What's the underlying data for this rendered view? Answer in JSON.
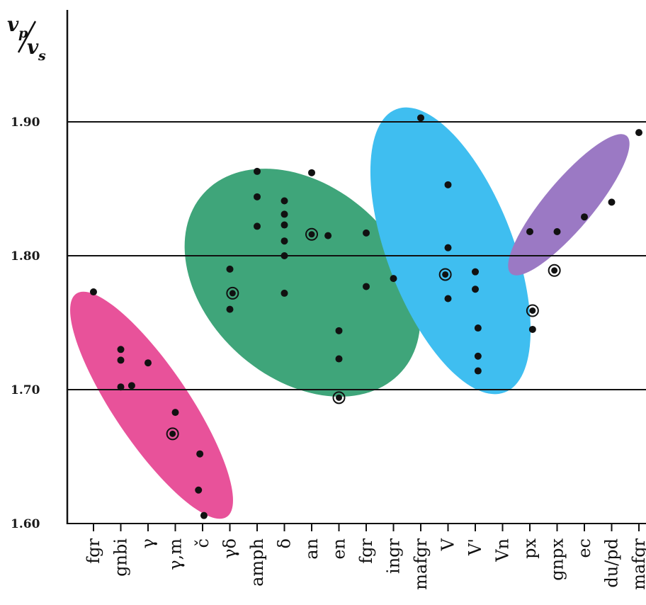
{
  "chart_data": {
    "type": "scatter",
    "ylabel": "vp/vs",
    "ylim": [
      1.6,
      1.98
    ],
    "yticks": [
      {
        "value": 1.6,
        "label": "1.60"
      },
      {
        "value": 1.7,
        "label": "1.70"
      },
      {
        "value": 1.8,
        "label": "1.80"
      },
      {
        "value": 1.9,
        "label": "1.90"
      }
    ],
    "grid": "horizontal",
    "categories": [
      "fgr",
      "gnbi",
      "γ",
      "γ,m",
      "č",
      "γδ",
      "amph",
      "δ",
      "an",
      "en",
      "fgr",
      "ingr",
      "mafgr",
      "V",
      "V'",
      "Vn",
      "px",
      "gnpx",
      "ec",
      "du/pd",
      "mafgr"
    ],
    "groups": [
      {
        "color": "#e8529a",
        "points": [
          {
            "x": 0,
            "y": 1.773
          },
          {
            "x": 1,
            "y": 1.73
          },
          {
            "x": 1,
            "y": 1.722
          },
          {
            "x": 1,
            "y": 1.702
          },
          {
            "x": 1.4,
            "y": 1.703
          },
          {
            "x": 2,
            "y": 1.72
          },
          {
            "x": 3,
            "y": 1.683
          },
          {
            "x": 2.9,
            "y": 1.667,
            "ringed": true
          },
          {
            "x": 3.9,
            "y": 1.652
          },
          {
            "x": 3.85,
            "y": 1.625
          },
          {
            "x": 4.05,
            "y": 1.606
          }
        ]
      },
      {
        "color": "#3fa57a",
        "points": [
          {
            "x": 5,
            "y": 1.79
          },
          {
            "x": 5.1,
            "y": 1.772,
            "ringed": true
          },
          {
            "x": 5,
            "y": 1.76
          },
          {
            "x": 6,
            "y": 1.863
          },
          {
            "x": 6,
            "y": 1.844
          },
          {
            "x": 6,
            "y": 1.822
          },
          {
            "x": 7,
            "y": 1.841
          },
          {
            "x": 7,
            "y": 1.831
          },
          {
            "x": 7,
            "y": 1.823
          },
          {
            "x": 7,
            "y": 1.811
          },
          {
            "x": 7,
            "y": 1.8
          },
          {
            "x": 7,
            "y": 1.772
          },
          {
            "x": 8,
            "y": 1.862
          },
          {
            "x": 8,
            "y": 1.816,
            "ringed": true
          },
          {
            "x": 8.6,
            "y": 1.815
          },
          {
            "x": 9,
            "y": 1.744
          },
          {
            "x": 9,
            "y": 1.723
          },
          {
            "x": 9,
            "y": 1.694,
            "ringed": true
          },
          {
            "x": 10,
            "y": 1.817
          },
          {
            "x": 10,
            "y": 1.777
          },
          {
            "x": 11,
            "y": 1.783
          }
        ]
      },
      {
        "color": "#3fbef0",
        "points": [
          {
            "x": 12,
            "y": 1.903
          },
          {
            "x": 13,
            "y": 1.853
          },
          {
            "x": 13,
            "y": 1.806
          },
          {
            "x": 12.9,
            "y": 1.786,
            "ringed": true
          },
          {
            "x": 13,
            "y": 1.768
          },
          {
            "x": 14,
            "y": 1.788
          },
          {
            "x": 14,
            "y": 1.775
          },
          {
            "x": 14.1,
            "y": 1.746
          },
          {
            "x": 14.1,
            "y": 1.725
          },
          {
            "x": 14.1,
            "y": 1.714
          },
          {
            "x": 16,
            "y": 1.818
          },
          {
            "x": 16.1,
            "y": 1.759,
            "ringed": true
          },
          {
            "x": 16.1,
            "y": 1.745
          }
        ]
      },
      {
        "color": "#9b79c4",
        "points": [
          {
            "x": 17,
            "y": 1.818
          },
          {
            "x": 16.9,
            "y": 1.789,
            "ringed": true
          },
          {
            "x": 18,
            "y": 1.829
          },
          {
            "x": 19,
            "y": 1.84
          },
          {
            "x": 20,
            "y": 1.892
          }
        ]
      }
    ]
  }
}
